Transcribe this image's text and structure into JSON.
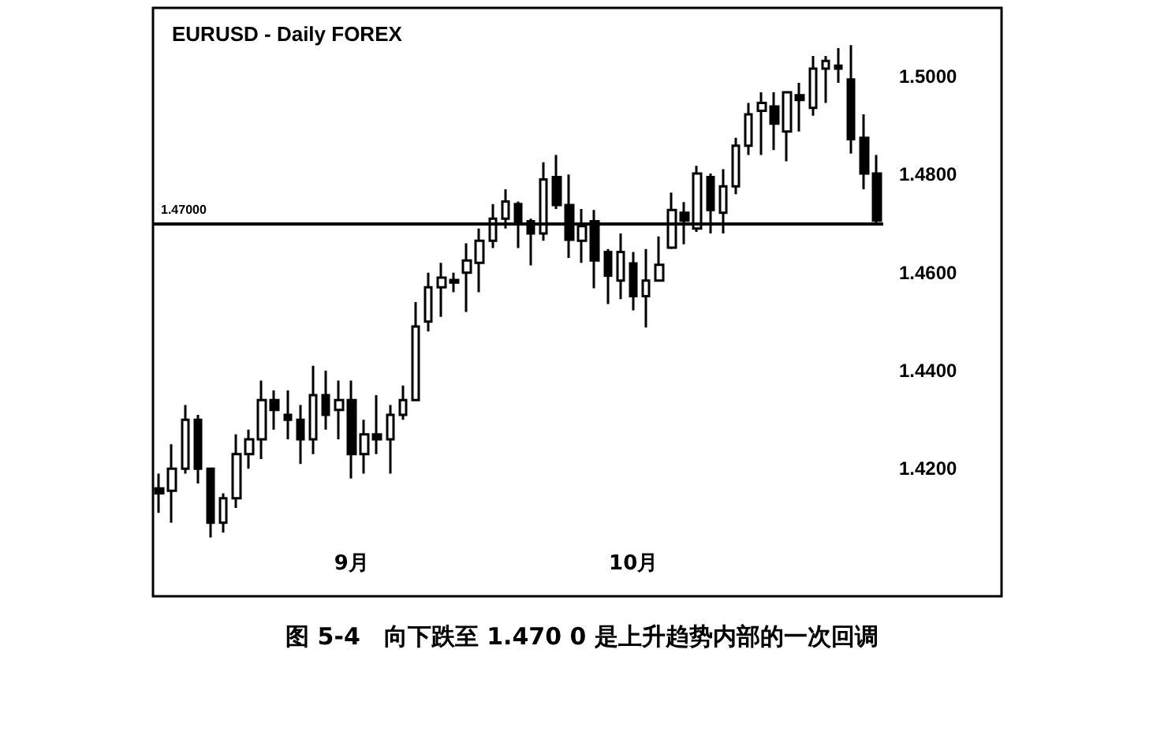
{
  "chart_data": {
    "type": "candlestick",
    "title": "EURUSD - Daily FOREX",
    "categories": [
      null,
      null,
      null,
      null,
      null,
      null,
      null,
      null,
      null,
      null,
      null,
      null,
      null,
      null,
      null,
      "9月",
      null,
      null,
      null,
      null,
      null,
      null,
      null,
      null,
      null,
      null,
      null,
      null,
      null,
      null,
      null,
      null,
      null,
      null,
      null,
      null,
      null,
      "10月",
      null,
      null,
      null,
      null,
      null,
      null,
      null,
      null,
      null,
      null,
      null,
      null,
      null,
      null,
      null,
      null,
      null,
      null,
      null
    ],
    "ohlc": [
      [
        1.416,
        1.419,
        1.411,
        1.415
      ],
      [
        1.4155,
        1.425,
        1.409,
        1.42
      ],
      [
        1.42,
        1.433,
        1.419,
        1.43
      ],
      [
        1.43,
        1.431,
        1.417,
        1.42
      ],
      [
        1.42,
        1.42,
        1.406,
        1.409
      ],
      [
        1.409,
        1.415,
        1.407,
        1.414
      ],
      [
        1.414,
        1.427,
        1.412,
        1.423
      ],
      [
        1.423,
        1.428,
        1.42,
        1.426
      ],
      [
        1.426,
        1.438,
        1.422,
        1.434
      ],
      [
        1.434,
        1.436,
        1.428,
        1.432
      ],
      [
        1.431,
        1.436,
        1.426,
        1.43
      ],
      [
        1.43,
        1.433,
        1.421,
        1.426
      ],
      [
        1.426,
        1.441,
        1.423,
        1.435
      ],
      [
        1.435,
        1.44,
        1.428,
        1.431
      ],
      [
        1.432,
        1.438,
        1.426,
        1.434
      ],
      [
        1.434,
        1.438,
        1.418,
        1.423
      ],
      [
        1.423,
        1.43,
        1.419,
        1.427
      ],
      [
        1.427,
        1.435,
        1.423,
        1.426
      ],
      [
        1.426,
        1.433,
        1.419,
        1.431
      ],
      [
        1.431,
        1.437,
        1.43,
        1.434
      ],
      [
        1.434,
        1.454,
        1.434,
        1.449
      ],
      [
        1.45,
        1.46,
        1.448,
        1.457
      ],
      [
        1.457,
        1.462,
        1.451,
        1.459
      ],
      [
        1.4585,
        1.46,
        1.456,
        1.458
      ],
      [
        1.46,
        1.466,
        1.452,
        1.4625
      ],
      [
        1.462,
        1.469,
        1.456,
        1.4665
      ],
      [
        1.4665,
        1.474,
        1.465,
        1.471
      ],
      [
        1.471,
        1.477,
        1.469,
        1.4745
      ],
      [
        1.474,
        1.4745,
        1.465,
        1.4705
      ],
      [
        1.4705,
        1.471,
        1.4615,
        1.468
      ],
      [
        1.468,
        1.4825,
        1.4665,
        1.479
      ],
      [
        1.4795,
        1.484,
        1.473,
        1.4738
      ],
      [
        1.4738,
        1.48,
        1.463,
        1.4667
      ],
      [
        1.4665,
        1.473,
        1.462,
        1.4695
      ],
      [
        1.4705,
        1.4728,
        1.4568,
        1.4625
      ],
      [
        1.4642,
        1.4648,
        1.4536,
        1.4594
      ],
      [
        1.4584,
        1.468,
        1.4546,
        1.4642
      ],
      [
        1.4619,
        1.4642,
        1.4523,
        1.4552
      ],
      [
        1.4552,
        1.4648,
        1.4488,
        1.4584
      ],
      [
        1.4584,
        1.4674,
        1.4584,
        1.4616
      ],
      [
        1.4651,
        1.4763,
        1.4648,
        1.4728
      ],
      [
        1.4722,
        1.4744,
        1.4658,
        1.4706
      ],
      [
        1.469,
        1.4818,
        1.4683,
        1.4802
      ],
      [
        1.4795,
        1.4802,
        1.468,
        1.4728
      ],
      [
        1.4722,
        1.4811,
        1.468,
        1.4776
      ],
      [
        1.4776,
        1.4875,
        1.476,
        1.4859
      ],
      [
        1.4859,
        1.4946,
        1.484,
        1.4923
      ],
      [
        1.493,
        1.4968,
        1.484,
        1.4946
      ],
      [
        1.4939,
        1.4968,
        1.485,
        1.4904
      ],
      [
        1.4888,
        1.4968,
        1.4827,
        1.4968
      ],
      [
        1.4962,
        1.4987,
        1.4888,
        1.4952
      ],
      [
        1.4936,
        1.5042,
        1.492,
        1.5016
      ],
      [
        1.5016,
        1.5042,
        1.4946,
        1.5032
      ],
      [
        1.5022,
        1.5058,
        1.4987,
        1.5016
      ],
      [
        1.4994,
        1.5064,
        1.4843,
        1.4872
      ],
      [
        1.4875,
        1.4923,
        1.477,
        1.4802
      ],
      [
        1.4802,
        1.484,
        1.4696,
        1.4706
      ]
    ],
    "ylim": [
      1.394,
      1.514
    ],
    "yticks": [
      {
        "value": 1.42,
        "label": "1.4200"
      },
      {
        "value": 1.44,
        "label": "1.4400"
      },
      {
        "value": 1.46,
        "label": "1.4600"
      },
      {
        "value": 1.48,
        "label": "1.4800"
      },
      {
        "value": 1.5,
        "label": "1.5000"
      }
    ],
    "ref_lines": [
      {
        "axis": "y",
        "value": 1.47,
        "label": "1.47000",
        "color": "#000000"
      }
    ],
    "annotations": [
      "图 5-4　向下跌至 1.470 0 是上升趋势内部的一次回调"
    ]
  }
}
